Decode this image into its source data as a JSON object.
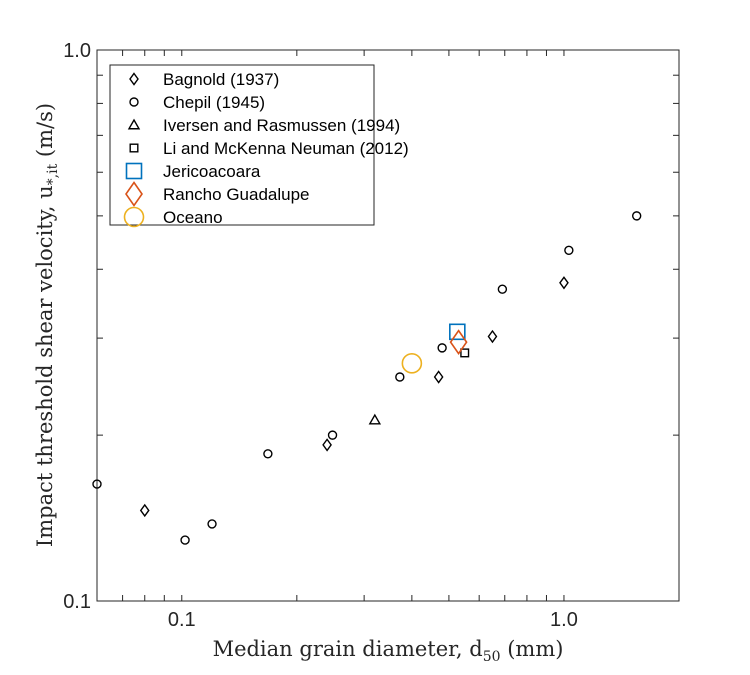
{
  "chart_data": {
    "type": "scatter",
    "xlabel": "Median grain diameter, d",
    "xlabel_sub": "50",
    "xlabel_unit": " (mm)",
    "ylabel": "Impact threshold shear velocity, u",
    "ylabel_sub": "*,it",
    "ylabel_unit": "  (m/s)",
    "xscale": "log",
    "yscale": "log",
    "xlim": [
      0.06,
      2.0
    ],
    "ylim": [
      0.1,
      1.0
    ],
    "grid": false,
    "legend_position": "top-left",
    "x_ticks": [
      {
        "value": 0.1,
        "label": "0.1"
      },
      {
        "value": 1.0,
        "label": "1.0"
      }
    ],
    "y_ticks": [
      {
        "value": 0.1,
        "label": "0.1"
      },
      {
        "value": 1.0,
        "label": "1.0"
      }
    ],
    "series": [
      {
        "name": "Bagnold (1937)",
        "marker": "diamond",
        "color": "#000000",
        "size": "small",
        "x": [
          0.08,
          0.24,
          0.47,
          0.65,
          1.0
        ],
        "y": [
          0.146,
          0.192,
          0.255,
          0.302,
          0.378
        ]
      },
      {
        "name": "Chepil (1945)",
        "marker": "circle",
        "color": "#000000",
        "size": "small",
        "x": [
          0.06,
          0.102,
          0.12,
          0.168,
          0.248,
          0.372,
          0.48,
          0.69,
          1.03,
          1.55
        ],
        "y": [
          0.163,
          0.129,
          0.138,
          0.185,
          0.2,
          0.255,
          0.288,
          0.368,
          0.433,
          0.5
        ]
      },
      {
        "name": "Iversen and Rasmussen (1994)",
        "marker": "triangle",
        "color": "#000000",
        "size": "small",
        "x": [
          0.32
        ],
        "y": [
          0.213
        ]
      },
      {
        "name": "Li and McKenna Neuman (2012)",
        "marker": "square",
        "color": "#000000",
        "size": "small",
        "x": [
          0.55
        ],
        "y": [
          0.282
        ]
      },
      {
        "name": "Jericoacoara",
        "marker": "square",
        "color": "#0072BD",
        "size": "large",
        "x": [
          0.526
        ],
        "y": [
          0.308
        ]
      },
      {
        "name": "Rancho Guadalupe",
        "marker": "diamond",
        "color": "#D95319",
        "size": "large",
        "x": [
          0.53
        ],
        "y": [
          0.295
        ]
      },
      {
        "name": "Oceano",
        "marker": "circle",
        "color": "#EDB120",
        "size": "large",
        "x": [
          0.4
        ],
        "y": [
          0.27
        ]
      }
    ]
  }
}
